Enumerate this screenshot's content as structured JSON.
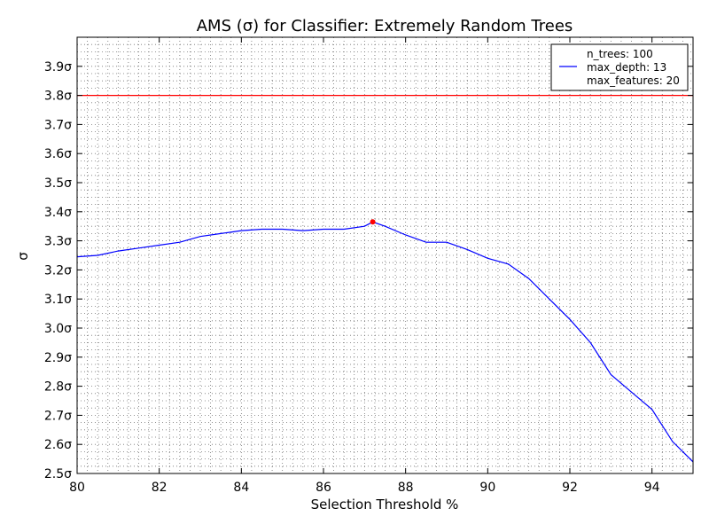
{
  "chart_data": {
    "type": "line",
    "title": "AMS (σ) for Classifier: Extremely Random Trees",
    "xlabel": "Selection Threshold %",
    "ylabel": "σ",
    "xlim": [
      80,
      95
    ],
    "ylim": [
      2.5,
      4.0
    ],
    "xticks": [
      80,
      82,
      84,
      86,
      88,
      90,
      92,
      94
    ],
    "yticks": [
      2.5,
      2.6,
      2.7,
      2.8,
      2.9,
      3.0,
      3.1,
      3.2,
      3.3,
      3.4,
      3.5,
      3.6,
      3.7,
      3.8,
      3.9
    ],
    "ytick_labels": [
      "2.5σ",
      "2.6σ",
      "2.7σ",
      "2.8σ",
      "2.9σ",
      "3.0σ",
      "3.1σ",
      "3.2σ",
      "3.3σ",
      "3.4σ",
      "3.5σ",
      "3.6σ",
      "3.7σ",
      "3.8σ",
      "3.9σ"
    ],
    "grid": true,
    "legend_position": "top-right",
    "legend_lines": [
      "n_trees: 100",
      "max_depth: 13",
      "max_features: 20"
    ],
    "reference_line": {
      "y": 3.8,
      "color": "#ff0000"
    },
    "max_point": {
      "x": 87.2,
      "y": 3.365,
      "color": "#ff0000"
    },
    "series": [
      {
        "color": "#0000ff",
        "x": [
          80.0,
          80.5,
          81.0,
          81.5,
          82.0,
          82.5,
          83.0,
          83.5,
          84.0,
          84.5,
          85.0,
          85.5,
          86.0,
          86.5,
          87.0,
          87.2,
          87.5,
          88.0,
          88.5,
          89.0,
          89.5,
          90.0,
          90.5,
          91.0,
          91.5,
          92.0,
          92.5,
          93.0,
          93.5,
          94.0,
          94.5,
          95.0
        ],
        "y": [
          3.245,
          3.25,
          3.265,
          3.275,
          3.285,
          3.295,
          3.315,
          3.325,
          3.335,
          3.34,
          3.34,
          3.335,
          3.34,
          3.34,
          3.35,
          3.365,
          3.35,
          3.32,
          3.295,
          3.295,
          3.27,
          3.24,
          3.22,
          3.17,
          3.1,
          3.03,
          2.95,
          2.84,
          2.78,
          2.72,
          2.61,
          2.54
        ]
      }
    ]
  }
}
